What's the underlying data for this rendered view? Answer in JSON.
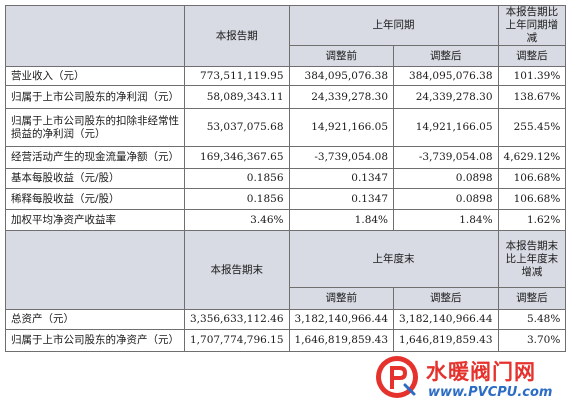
{
  "table": {
    "header1": {
      "current": "本报告期",
      "last_year": "上年同期",
      "change": "本报告期比上年同期增减",
      "before": "调整前",
      "after": "调整后",
      "adjusted": "调整后"
    },
    "rows": [
      {
        "label": "营业收入（元）",
        "current": "773,511,119.95",
        "before": "384,095,076.38",
        "after": "384,095,076.38",
        "change": "101.39%"
      },
      {
        "label": "归属于上市公司股东的净利润（元）",
        "current": "58,089,343.11",
        "before": "24,339,278.30",
        "after": "24,339,278.30",
        "change": "138.67%"
      },
      {
        "label": "归属于上市公司股东的扣除非经常性损益的净利润（元）",
        "current": "53,037,075.68",
        "before": "14,921,166.05",
        "after": "14,921,166.05",
        "change": "255.45%"
      },
      {
        "label": "经营活动产生的现金流量净额（元）",
        "current": "169,346,367.65",
        "before": "-3,739,054.08",
        "after": "-3,739,054.08",
        "change": "4,629.12%"
      },
      {
        "label": "基本每股收益（元/股）",
        "current": "0.1856",
        "before": "0.1347",
        "after": "0.0898",
        "change": "106.68%"
      },
      {
        "label": "稀释每股收益（元/股）",
        "current": "0.1856",
        "before": "0.1347",
        "after": "0.0898",
        "change": "106.68%"
      },
      {
        "label": "加权平均净资产收益率",
        "current": "3.46%",
        "before": "1.84%",
        "after": "1.84%",
        "change": "1.62%"
      }
    ],
    "header2": {
      "current": "本报告期末",
      "last_year": "上年度末",
      "change": "本报告期末比上年度末增减",
      "before": "调整前",
      "after": "调整后",
      "adjusted": "调整后"
    },
    "rows2": [
      {
        "label": "总资产（元）",
        "current": "3,356,633,112.46",
        "before": "3,182,140,966.44",
        "after": "3,182,140,966.44",
        "change": "5.48%"
      },
      {
        "label": "归属于上市公司股东的净资产（元）",
        "current": "1,707,774,796.15",
        "before": "1,646,819,859.43",
        "after": "1,646,819,859.43",
        "change": "3.70%"
      }
    ]
  },
  "watermark": {
    "text_cn": "水暖阀门网",
    "url": "www.PVCPU.com",
    "badge_letter": "P",
    "colors": {
      "red": "#e5322d",
      "blue": "#2b6cc4"
    }
  }
}
